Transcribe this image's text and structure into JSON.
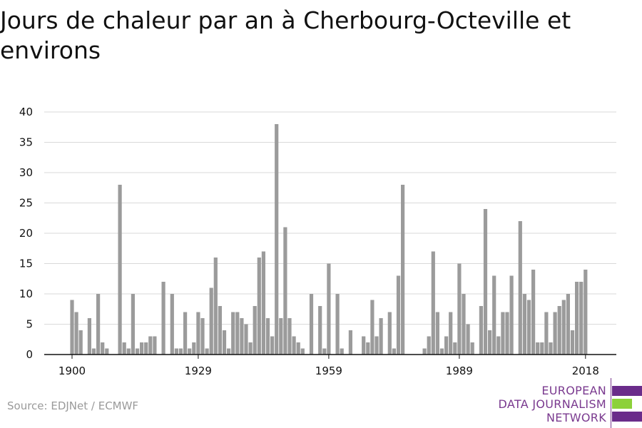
{
  "title": "Jours de chaleur par an à Cherbourg-Octeville et environs",
  "source": "Source: EDJNet / ECMWF",
  "logo": {
    "lines": [
      "EUROPEAN",
      "DATA JOURNALISM",
      "NETWORK"
    ],
    "colors": [
      "#6a2c8a",
      "#8cd13a",
      "#6a2c8a"
    ]
  },
  "colors": {
    "bar": "#9b9b9b",
    "grid": "#d9d9d9",
    "axis": "#111111"
  },
  "chart_data": {
    "type": "bar",
    "title": "Jours de chaleur par an à Cherbourg-Octeville et environs",
    "xlabel": "",
    "ylabel": "",
    "ylim": [
      0,
      40
    ],
    "yticks": [
      0,
      5,
      10,
      15,
      20,
      25,
      30,
      35,
      40
    ],
    "xticks": [
      1900,
      1929,
      1959,
      1989,
      2018
    ],
    "grid": true,
    "x": [
      1900,
      1901,
      1902,
      1903,
      1904,
      1905,
      1906,
      1907,
      1908,
      1909,
      1910,
      1911,
      1912,
      1913,
      1914,
      1915,
      1916,
      1917,
      1918,
      1919,
      1920,
      1921,
      1922,
      1923,
      1924,
      1925,
      1926,
      1927,
      1928,
      1929,
      1930,
      1931,
      1932,
      1933,
      1934,
      1935,
      1936,
      1937,
      1938,
      1939,
      1940,
      1941,
      1942,
      1943,
      1944,
      1945,
      1946,
      1947,
      1948,
      1949,
      1950,
      1951,
      1952,
      1953,
      1954,
      1955,
      1956,
      1957,
      1958,
      1959,
      1960,
      1961,
      1962,
      1963,
      1964,
      1965,
      1966,
      1967,
      1968,
      1969,
      1970,
      1971,
      1972,
      1973,
      1974,
      1975,
      1976,
      1977,
      1978,
      1979,
      1980,
      1981,
      1982,
      1983,
      1984,
      1985,
      1986,
      1987,
      1988,
      1989,
      1990,
      1991,
      1992,
      1993,
      1994,
      1995,
      1996,
      1997,
      1998,
      1999,
      2000,
      2001,
      2002,
      2003,
      2004,
      2005,
      2006,
      2007,
      2008,
      2009,
      2010,
      2011,
      2012,
      2013,
      2014,
      2015,
      2016,
      2017,
      2018
    ],
    "values": [
      9,
      7,
      4,
      0,
      6,
      1,
      10,
      2,
      1,
      0,
      0,
      28,
      2,
      1,
      10,
      1,
      2,
      2,
      3,
      3,
      0,
      12,
      0,
      10,
      1,
      1,
      7,
      1,
      2,
      7,
      6,
      1,
      11,
      16,
      8,
      4,
      1,
      7,
      7,
      6,
      5,
      2,
      8,
      16,
      17,
      6,
      3,
      38,
      6,
      21,
      6,
      3,
      2,
      1,
      0,
      10,
      0,
      8,
      1,
      15,
      0,
      10,
      1,
      0,
      4,
      0,
      0,
      3,
      2,
      9,
      3,
      6,
      0,
      7,
      1,
      13,
      28,
      0,
      0,
      0,
      0,
      1,
      3,
      17,
      7,
      1,
      3,
      7,
      2,
      15,
      10,
      5,
      2,
      0,
      8,
      24,
      4,
      13,
      3,
      7,
      7,
      13,
      0,
      22,
      10,
      9,
      14,
      2,
      2,
      7,
      2,
      7,
      8,
      9,
      10,
      4,
      12,
      12,
      14
    ]
  }
}
